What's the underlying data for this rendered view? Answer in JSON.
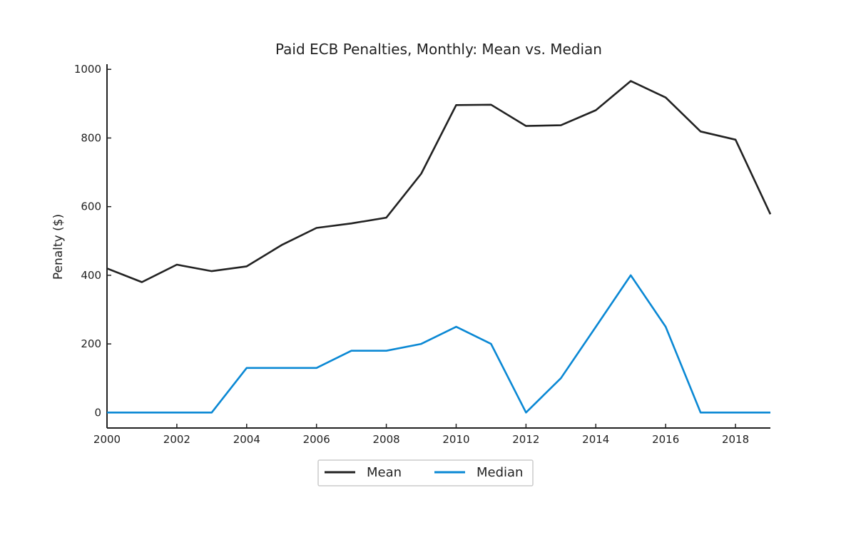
{
  "chart_data": {
    "type": "line",
    "title": "Paid ECB Penalties, Monthly: Mean vs. Median",
    "xlabel": "",
    "ylabel": "Penalty ($)",
    "xlim": [
      2000,
      2019
    ],
    "ylim": [
      -45,
      1015
    ],
    "x_ticks": [
      2000,
      2002,
      2004,
      2006,
      2008,
      2010,
      2012,
      2014,
      2016,
      2018
    ],
    "y_ticks": [
      0,
      200,
      400,
      600,
      800,
      1000
    ],
    "x": [
      2000,
      2001,
      2002,
      2003,
      2004,
      2005,
      2006,
      2007,
      2008,
      2009,
      2010,
      2011,
      2012,
      2013,
      2014,
      2015,
      2016,
      2017,
      2018,
      2019
    ],
    "series": [
      {
        "name": "Mean",
        "color": "#222222",
        "values": [
          420,
          380,
          431,
          412,
          426,
          488,
          538,
          551,
          568,
          696,
          896,
          897,
          835,
          837,
          881,
          966,
          918,
          819,
          795,
          578
        ]
      },
      {
        "name": "Median",
        "color": "#0a88d4",
        "values": [
          0,
          0,
          0,
          0,
          130,
          130,
          130,
          180,
          180,
          200,
          250,
          200,
          0,
          100,
          250,
          400,
          250,
          0,
          0,
          0
        ]
      }
    ],
    "grid": false,
    "legend_position": "bottom-center"
  }
}
